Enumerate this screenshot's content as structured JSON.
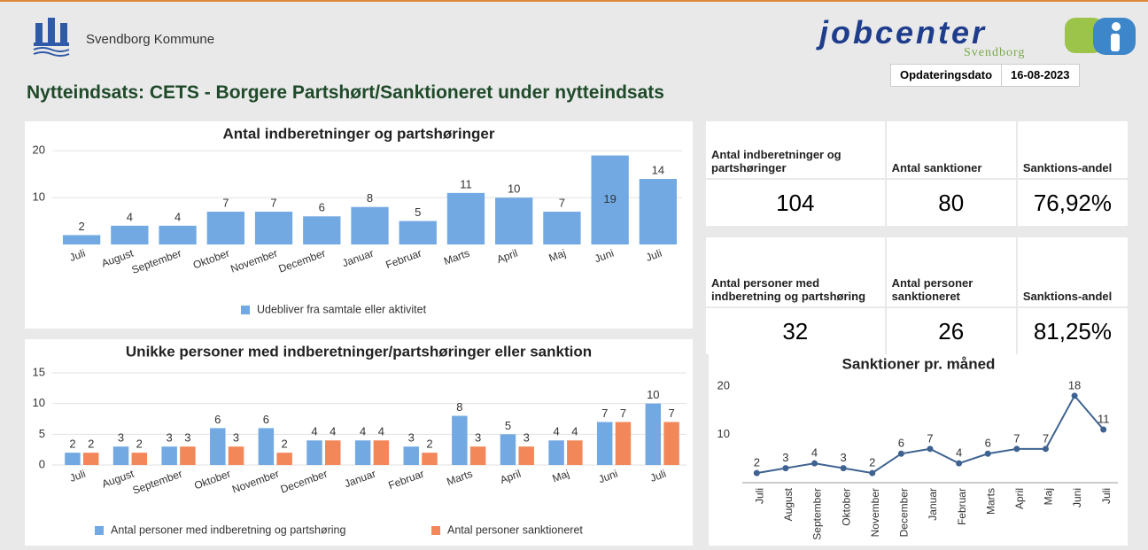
{
  "header": {
    "org": "Svendborg Kommune",
    "brand": "jobcenter",
    "brand_sub": "Svendborg",
    "date_label": "Opdateringsdato",
    "date": "16-08-2023",
    "title": "Nytteindsats: CETS - Borgere Partshørt/Sanktioneret under nytteindsats"
  },
  "kpi": [
    {
      "headers": [
        "Antal indberetninger og partshøringer",
        "Antal sanktioner",
        "Sanktions-andel"
      ],
      "values": [
        "104",
        "80",
        "76,92%"
      ]
    },
    {
      "headers": [
        "Antal personer med indberetning og partshøring",
        "Antal personer sanktioneret",
        "Sanktions-andel"
      ],
      "values": [
        "32",
        "26",
        "81,25%"
      ]
    }
  ],
  "chart_data": [
    {
      "type": "bar",
      "title": "Antal indberetninger og partshøringer",
      "categories": [
        "Juli",
        "August",
        "September",
        "Oktober",
        "November",
        "December",
        "Januar",
        "Februar",
        "Marts",
        "April",
        "Maj",
        "Juni",
        "Juli"
      ],
      "series": [
        {
          "name": "Udebliver fra samtale eller aktivitet",
          "color": "#72a9e2",
          "values": [
            2,
            4,
            4,
            7,
            7,
            6,
            8,
            5,
            11,
            10,
            7,
            19,
            14
          ]
        }
      ],
      "ylim": [
        0,
        21
      ],
      "yticks": [
        10,
        20
      ],
      "grid": true
    },
    {
      "type": "bar",
      "title": "Unikke personer med indberetninger/partshøringer eller sanktion",
      "categories": [
        "Juli",
        "August",
        "September",
        "Oktober",
        "November",
        "December",
        "Januar",
        "Februar",
        "Marts",
        "April",
        "Maj",
        "Juni",
        "Juli"
      ],
      "series": [
        {
          "name": "Antal personer med indberetning og partshøring",
          "color": "#72a9e2",
          "values": [
            2,
            3,
            3,
            6,
            6,
            4,
            4,
            3,
            8,
            5,
            4,
            7,
            10
          ]
        },
        {
          "name": "Antal personer sanktioneret",
          "color": "#f2875a",
          "values": [
            2,
            2,
            3,
            3,
            2,
            4,
            4,
            2,
            3,
            3,
            4,
            7,
            7
          ]
        }
      ],
      "ylim": [
        0,
        15
      ],
      "yticks": [
        0,
        5,
        10,
        15
      ],
      "grid": true
    },
    {
      "type": "line",
      "title": "Sanktioner pr. måned",
      "categories": [
        "Juli",
        "August",
        "September",
        "Oktober",
        "November",
        "December",
        "Januar",
        "Februar",
        "Marts",
        "April",
        "Maj",
        "Juni",
        "Juli"
      ],
      "values": [
        2,
        3,
        4,
        3,
        2,
        6,
        7,
        4,
        6,
        7,
        7,
        18,
        11
      ],
      "color": "#3f6391",
      "ylim": [
        0,
        22
      ],
      "yticks": [
        10,
        20
      ],
      "grid": false
    }
  ]
}
